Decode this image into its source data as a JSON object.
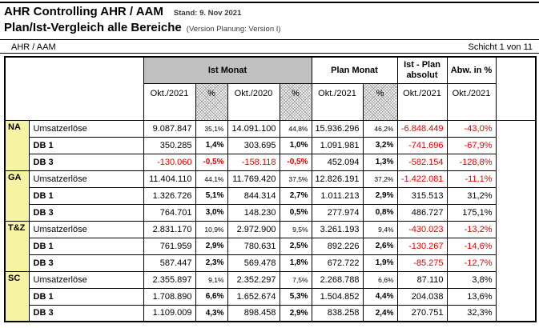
{
  "header": {
    "title_line1": "AHR Controlling AHR / AAM",
    "stand": "Stand: 9. Nov 2021",
    "title_line2": "Plan/Ist-Vergleich alle Bereiche",
    "version_note": "(Version Planung: Version I)",
    "scope_label": "AHR / AAM",
    "page_indicator": "Schicht 1 von 11"
  },
  "colors": {
    "group_yellow": "#f6f3a2",
    "header_gray": "#c0c0c0",
    "negative_red": "#e30000"
  },
  "table": {
    "col_groups": {
      "ist_monat": "Ist Monat",
      "plan_monat": "Plan Monat",
      "ist_plan_absolut": "Ist - Plan absolut",
      "abw_in_pct": "Abw. in %"
    },
    "sub_headers": [
      "Okt./2021",
      "%",
      "Okt./2020",
      "%",
      "Okt./2021",
      "%",
      "Okt./2021",
      "Okt./2021"
    ],
    "groups": [
      {
        "name": "NA",
        "rows": [
          {
            "label": "Umsatzerlöse",
            "values": [
              "9.087.847",
              "35,1%",
              "14.091.100",
              "44,8%",
              "15.936.296",
              "46,2%",
              "-6.848.449",
              "-43,0%"
            ]
          },
          {
            "label": "DB 1",
            "values": [
              "350.285",
              "1,4%",
              "303.695",
              "1,0%",
              "1.091.981",
              "3,2%",
              "-741.696",
              "-67,9%"
            ]
          },
          {
            "label": "DB 3",
            "values": [
              "-130.060",
              "-0,5%",
              "-158.118",
              "-0,5%",
              "452.094",
              "1,3%",
              "-582.154",
              "-128,8%"
            ]
          }
        ]
      },
      {
        "name": "GA",
        "rows": [
          {
            "label": "Umsatzerlöse",
            "values": [
              "11.404.110",
              "44,1%",
              "11.769.420",
              "37,5%",
              "12.826.191",
              "37,2%",
              "-1.422.081",
              "-11,1%"
            ]
          },
          {
            "label": "DB 1",
            "values": [
              "1.326.726",
              "5,1%",
              "844.314",
              "2,7%",
              "1.011.213",
              "2,9%",
              "315.513",
              "31,2%"
            ]
          },
          {
            "label": "DB 3",
            "values": [
              "764.701",
              "3,0%",
              "148.230",
              "0,5%",
              "277.974",
              "0,8%",
              "486.727",
              "175,1%"
            ]
          }
        ]
      },
      {
        "name": "T&Z",
        "rows": [
          {
            "label": "Umsatzerlöse",
            "values": [
              "2.831.170",
              "10,9%",
              "2.972.900",
              "9,5%",
              "3.261.193",
              "9,4%",
              "-430.023",
              "-13,2%"
            ]
          },
          {
            "label": "DB 1",
            "values": [
              "761.959",
              "2,9%",
              "780.631",
              "2,5%",
              "892.226",
              "2,6%",
              "-130.267",
              "-14,6%"
            ]
          },
          {
            "label": "DB 3",
            "values": [
              "587.447",
              "2,3%",
              "569.478",
              "1,8%",
              "672.722",
              "1,9%",
              "-85.275",
              "-12,7%"
            ]
          }
        ]
      },
      {
        "name": "SC",
        "rows": [
          {
            "label": "Umsatzerlöse",
            "values": [
              "2.355.897",
              "9,1%",
              "2.352.297",
              "7,5%",
              "2.268.788",
              "6,6%",
              "87.110",
              "3,8%"
            ]
          },
          {
            "label": "DB 1",
            "values": [
              "1.708.890",
              "6,6%",
              "1.652.674",
              "5,3%",
              "1.504.852",
              "4,4%",
              "204.038",
              "13,6%"
            ]
          },
          {
            "label": "DB 3",
            "values": [
              "1.109.009",
              "4,3%",
              "898.458",
              "2,9%",
              "838.258",
              "2,4%",
              "270.751",
              "32,3%"
            ]
          }
        ]
      }
    ]
  }
}
